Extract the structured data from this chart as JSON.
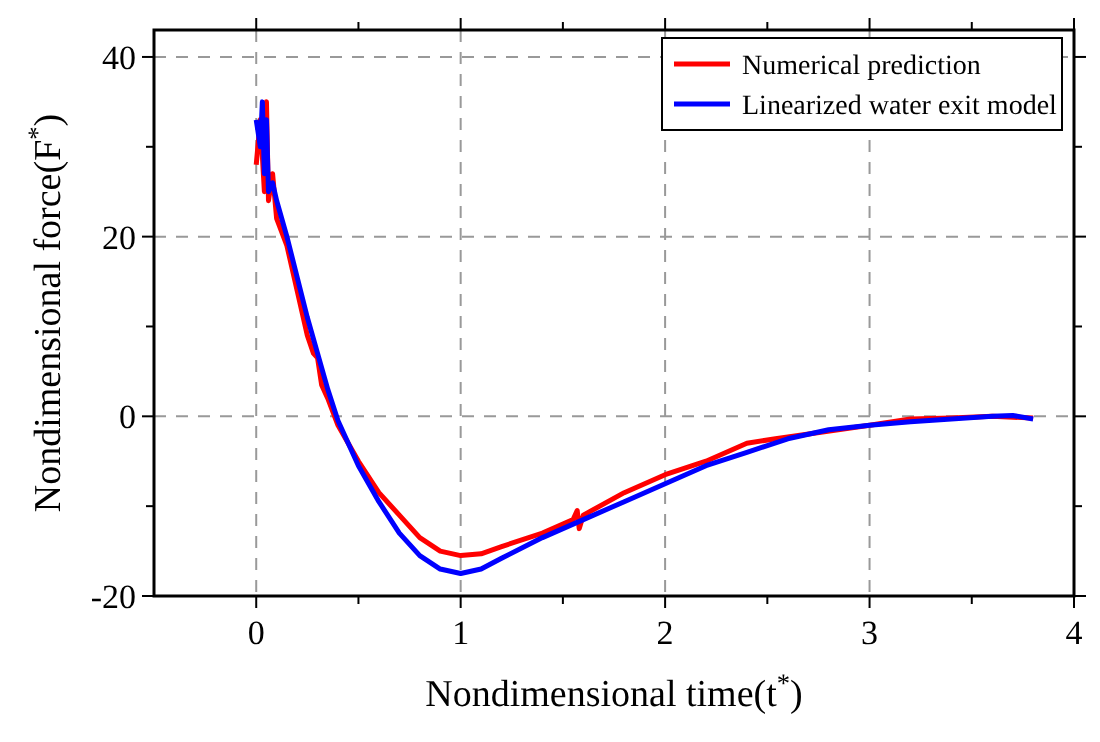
{
  "chart_data": {
    "type": "line",
    "xlabel": "Nondimensional time(t$^{*}$)",
    "ylabel": "Nondimensional force(F$^{*}$)",
    "xlim": [
      -0.5,
      4
    ],
    "xticks": [
      0,
      {
        "value": 0.5,
        "label": null
      },
      1,
      {
        "value": 1.5,
        "label": null
      },
      2,
      {
        "value": 2.5,
        "label": null
      },
      3,
      {
        "value": 3.5,
        "label": null
      },
      4
    ],
    "ylim": [
      -20,
      43
    ],
    "yticks": [
      -20,
      {
        "value": -10,
        "label": null
      },
      0,
      {
        "value": 10,
        "label": null
      },
      20,
      {
        "value": 30,
        "label": null
      },
      40
    ],
    "grid": true,
    "legend": "top right",
    "line_style": "solid",
    "marker": "none",
    "series": [
      {
        "name": "Numerical prediction",
        "color": "#ff0000",
        "x": [
          0.0,
          0.02,
          0.04,
          0.05,
          0.06,
          0.08,
          0.1,
          0.15,
          0.2,
          0.25,
          0.28,
          0.3,
          0.32,
          0.35,
          0.4,
          0.5,
          0.6,
          0.7,
          0.8,
          0.9,
          1.0,
          1.1,
          1.2,
          1.4,
          1.55,
          1.57,
          1.58,
          1.6,
          1.8,
          2.0,
          2.2,
          2.4,
          2.54,
          2.6,
          3.0,
          3.2,
          3.4,
          3.6,
          3.8
        ],
        "values": [
          28,
          33,
          25,
          35,
          24,
          27,
          22,
          19,
          14,
          9,
          7,
          6.5,
          3.5,
          2,
          -1,
          -5,
          -8.5,
          -11,
          -13.5,
          -15,
          -15.5,
          -15.3,
          -14.5,
          -13,
          -11.5,
          -10.5,
          -12.5,
          -11,
          -8.5,
          -6.5,
          -5,
          -3,
          -2.5,
          -2.3,
          -1,
          -0.3,
          -0.2,
          0,
          -0.2
        ]
      },
      {
        "name": "Linearized water exit model",
        "color": "#0000ff",
        "x": [
          0.0,
          0.02,
          0.03,
          0.04,
          0.05,
          0.06,
          0.08,
          0.1,
          0.15,
          0.2,
          0.25,
          0.3,
          0.35,
          0.4,
          0.5,
          0.6,
          0.7,
          0.8,
          0.9,
          1.0,
          1.1,
          1.2,
          1.4,
          1.6,
          1.8,
          2.0,
          2.2,
          2.4,
          2.6,
          2.8,
          3.0,
          3.2,
          3.4,
          3.6,
          3.7,
          3.8
        ],
        "values": [
          33,
          30,
          35,
          27,
          33,
          25,
          26,
          24,
          20,
          15.5,
          11,
          7,
          3,
          -0.5,
          -5.5,
          -9.5,
          -13,
          -15.5,
          -17,
          -17.5,
          -17,
          -15.8,
          -13.5,
          -11.5,
          -9.5,
          -7.5,
          -5.5,
          -4,
          -2.5,
          -1.5,
          -1,
          -0.6,
          -0.3,
          0,
          0.1,
          -0.3
        ]
      }
    ]
  }
}
